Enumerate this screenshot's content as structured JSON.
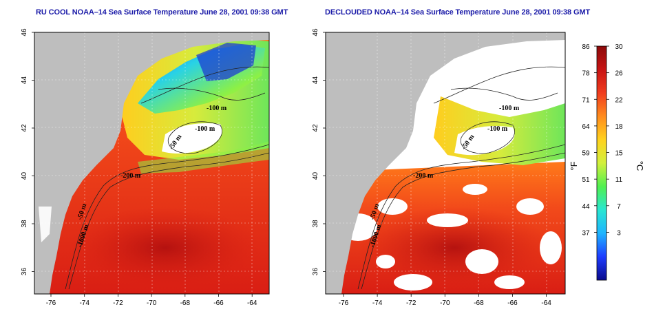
{
  "maps": [
    {
      "title": "RU COOL NOAA–14 Sea Surface Temperature June 28, 2001 09:38 GMT",
      "contours": [
        "-100 m",
        "-100 m",
        "-50 m",
        "-200 m",
        "-50 m",
        "-1000 m"
      ]
    },
    {
      "title": "DECLOUDED NOAA–14 Sea Surface Temperature June 28, 2001 09:38 GMT",
      "contours": [
        "-100 m",
        "-100 m",
        "-50 m",
        "-200 m",
        "-50 m",
        "-1000 m"
      ]
    }
  ],
  "longitude_ticks": [
    "-76",
    "-74",
    "-72",
    "-70",
    "-68",
    "-66",
    "-64"
  ],
  "latitude_ticks": [
    "46",
    "44",
    "42",
    "40",
    "38",
    "36"
  ],
  "colorbar": {
    "unit_f": "°F",
    "unit_c": "°C",
    "fahrenheit_ticks": [
      "86",
      "78",
      "71",
      "64",
      "59",
      "51",
      "44",
      "37"
    ],
    "celsius_ticks": [
      "30",
      "26",
      "22",
      "18",
      "15",
      "11",
      "7",
      "3"
    ],
    "colors": [
      "#0a0a8c",
      "#1e3cff",
      "#1eb4ff",
      "#28e6d2",
      "#50f050",
      "#d2f03c",
      "#ffd21e",
      "#ff8c1e",
      "#f03c1e",
      "#c81414",
      "#8c0a0a"
    ]
  },
  "land_color": "#bebebe",
  "cloud_color": "#ffffff"
}
